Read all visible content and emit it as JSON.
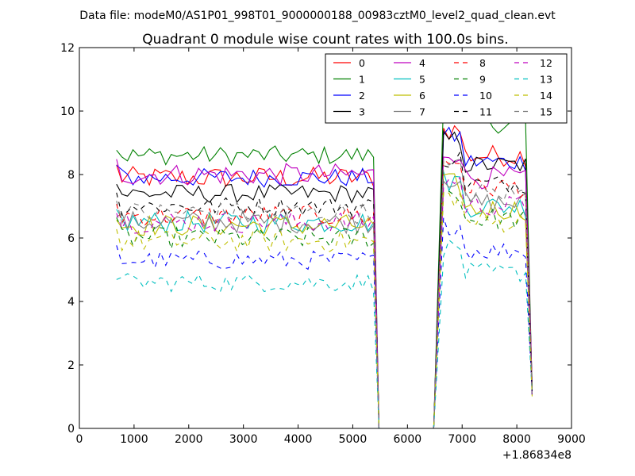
{
  "suptitle": "Data file: modeM0/AS1P01_998T01_9000000188_00983cztM0_level2_quad_clean.evt",
  "chart_data": {
    "type": "line",
    "title": "Quadrant 0 module wise count rates with 100.0s bins.",
    "xlabel": "",
    "ylabel": "",
    "x_offset_label": "+1.86834e8",
    "xlim": [
      0,
      9000
    ],
    "ylim": [
      0,
      12
    ],
    "xticks": [
      0,
      1000,
      2000,
      3000,
      4000,
      5000,
      6000,
      7000,
      8000,
      9000
    ],
    "yticks": [
      0,
      2,
      4,
      6,
      8,
      10,
      12
    ],
    "grid": false,
    "legend_position": "top-right",
    "legend_columns": 4,
    "bin_width_s": 100,
    "segments": [
      {
        "start": 680,
        "end": 5380,
        "drop_to": 5480
      },
      {
        "start": 6480,
        "end": 8280
      }
    ],
    "series": [
      {
        "name": "0",
        "color": "#ff0000",
        "dash": "solid",
        "level1": 7.9,
        "level2": 8.6,
        "noise": 0.35
      },
      {
        "name": "1",
        "color": "#008000",
        "dash": "solid",
        "level1": 8.6,
        "level2": 9.6,
        "noise": 0.3
      },
      {
        "name": "2",
        "color": "#0000ff",
        "dash": "solid",
        "level1": 7.9,
        "level2": 8.4,
        "noise": 0.3
      },
      {
        "name": "3",
        "color": "#000000",
        "dash": "solid",
        "level1": 7.4,
        "level2": 8.3,
        "noise": 0.3
      },
      {
        "name": "4",
        "color": "#bf00bf",
        "dash": "solid",
        "level1": 8.0,
        "level2": 7.9,
        "noise": 0.35
      },
      {
        "name": "5",
        "color": "#00bfbf",
        "dash": "solid",
        "level1": 6.5,
        "level2": 7.0,
        "noise": 0.35
      },
      {
        "name": "6",
        "color": "#bfbf00",
        "dash": "solid",
        "level1": 6.4,
        "level2": 6.9,
        "noise": 0.35
      },
      {
        "name": "7",
        "color": "#808080",
        "dash": "solid",
        "level1": 6.5,
        "level2": 7.1,
        "noise": 0.35
      },
      {
        "name": "8",
        "color": "#ff0000",
        "dash": "dashed",
        "level1": 6.7,
        "level2": 7.6,
        "noise": 0.35
      },
      {
        "name": "9",
        "color": "#008000",
        "dash": "dashed",
        "level1": 6.0,
        "level2": 6.6,
        "noise": 0.35
      },
      {
        "name": "10",
        "color": "#0000ff",
        "dash": "dashed",
        "level1": 5.3,
        "level2": 5.6,
        "noise": 0.3
      },
      {
        "name": "11",
        "color": "#000000",
        "dash": "dashed",
        "level1": 7.0,
        "level2": 7.7,
        "noise": 0.3
      },
      {
        "name": "12",
        "color": "#bf00bf",
        "dash": "dashed",
        "level1": 6.5,
        "level2": 7.0,
        "noise": 0.35
      },
      {
        "name": "13",
        "color": "#00bfbf",
        "dash": "dashed",
        "level1": 4.6,
        "level2": 4.9,
        "noise": 0.3
      },
      {
        "name": "14",
        "color": "#bfbf00",
        "dash": "dashed",
        "level1": 5.9,
        "level2": 6.5,
        "noise": 0.35
      },
      {
        "name": "15",
        "color": "#808080",
        "dash": "dashed",
        "level1": 6.8,
        "level2": 7.4,
        "noise": 0.35
      }
    ]
  }
}
